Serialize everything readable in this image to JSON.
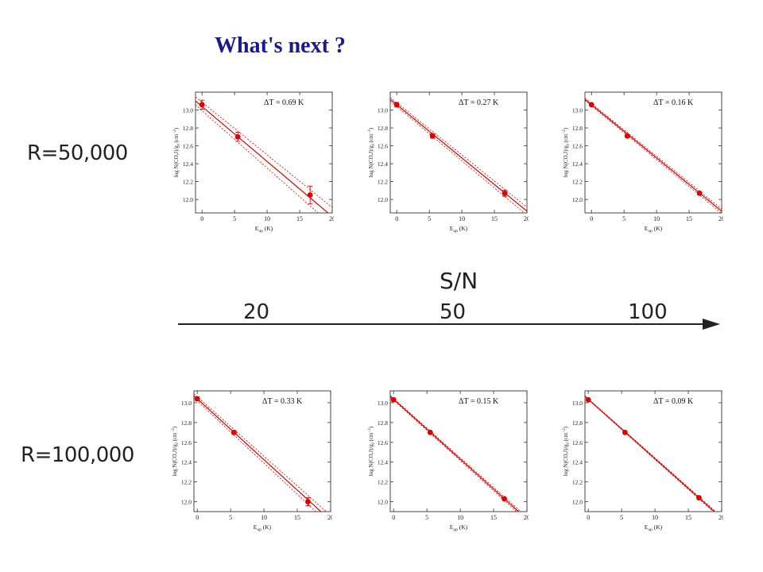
{
  "slide": {
    "title": "What's next ?",
    "row_labels": [
      "R=50,000",
      "R=100,000"
    ],
    "sn_axis": {
      "label": "S/N",
      "values": [
        "20",
        "50",
        "100"
      ]
    }
  },
  "chart_data": [
    {
      "type": "scatter",
      "row": "R=50,000",
      "column_sn": "20",
      "annotation": "ΔT = 0.69 K",
      "xlabel": "E_up (K)",
      "ylabel": "log N(CO,J)/g_J (cm^-2)",
      "xlim": [
        -1,
        20
      ],
      "ylim": [
        11.85,
        13.2
      ],
      "xticks": [
        0,
        5,
        10,
        15,
        20
      ],
      "yticks": [
        12.0,
        12.2,
        12.4,
        12.6,
        12.8,
        13.0
      ],
      "x": [
        0,
        5.5,
        16.6
      ],
      "y": [
        13.06,
        12.7,
        12.05
      ],
      "yerr": [
        0.05,
        0.05,
        0.1
      ],
      "fit": {
        "intercept": 13.04,
        "slope": -0.0615
      },
      "fit_band": [
        0.045,
        0.1
      ]
    },
    {
      "type": "scatter",
      "row": "R=50,000",
      "column_sn": "50",
      "annotation": "ΔT = 0.27 K",
      "xlabel": "E_up (K)",
      "ylabel": "log N(CO,J)/g_J (cm^-2)",
      "xlim": [
        -1,
        20
      ],
      "ylim": [
        11.85,
        13.2
      ],
      "xticks": [
        0,
        5,
        10,
        15,
        20
      ],
      "yticks": [
        12.0,
        12.2,
        12.4,
        12.6,
        12.8,
        13.0
      ],
      "x": [
        0,
        5.5,
        16.6
      ],
      "y": [
        13.06,
        12.71,
        12.07
      ],
      "yerr": [
        0.025,
        0.025,
        0.035
      ],
      "fit": {
        "intercept": 13.06,
        "slope": -0.0595
      },
      "fit_band": [
        0.02,
        0.045
      ]
    },
    {
      "type": "scatter",
      "row": "R=50,000",
      "column_sn": "100",
      "annotation": "ΔT = 0.16 K",
      "xlabel": "E_up (K)",
      "ylabel": "log N(CO,J)/g_J (cm^-2)",
      "xlim": [
        -1,
        20
      ],
      "ylim": [
        11.85,
        13.2
      ],
      "xticks": [
        0,
        5,
        10,
        15,
        20
      ],
      "yticks": [
        12.0,
        12.2,
        12.4,
        12.6,
        12.8,
        13.0
      ],
      "x": [
        0,
        5.5,
        16.6
      ],
      "y": [
        13.06,
        12.71,
        12.07
      ],
      "yerr": [
        0.012,
        0.012,
        0.018
      ],
      "fit": {
        "intercept": 13.06,
        "slope": -0.0595
      },
      "fit_band": [
        0.012,
        0.025
      ]
    },
    {
      "type": "scatter",
      "row": "R=100,000",
      "column_sn": "20",
      "annotation": "ΔT = 0.33 K",
      "xlabel": "E_up (K)",
      "ylabel": "log N(CO,J)/g_J (cm^-2)",
      "xlim": [
        -0.5,
        20
      ],
      "ylim": [
        11.9,
        13.12
      ],
      "xticks": [
        0,
        5,
        10,
        15,
        20
      ],
      "yticks": [
        12.0,
        12.2,
        12.4,
        12.6,
        12.8,
        13.0
      ],
      "x": [
        0,
        5.5,
        16.6
      ],
      "y": [
        13.04,
        12.7,
        12.0
      ],
      "yerr": [
        0.02,
        0.02,
        0.04
      ],
      "fit": {
        "intercept": 13.04,
        "slope": -0.0615
      },
      "fit_band": [
        0.02,
        0.05
      ]
    },
    {
      "type": "scatter",
      "row": "R=100,000",
      "column_sn": "50",
      "annotation": "ΔT = 0.15 K",
      "xlabel": "E_up (K)",
      "ylabel": "log N(CO,J)/g_J (cm^-2)",
      "xlim": [
        -0.5,
        20
      ],
      "ylim": [
        11.9,
        13.12
      ],
      "xticks": [
        0,
        5,
        10,
        15,
        20
      ],
      "yticks": [
        12.0,
        12.2,
        12.4,
        12.6,
        12.8,
        13.0
      ],
      "x": [
        0,
        5.5,
        16.6
      ],
      "y": [
        13.03,
        12.7,
        12.03
      ],
      "yerr": [
        0.01,
        0.01,
        0.015
      ],
      "fit": {
        "intercept": 13.035,
        "slope": -0.0605
      },
      "fit_band": [
        0.008,
        0.02
      ]
    },
    {
      "type": "scatter",
      "row": "R=100,000",
      "column_sn": "100",
      "annotation": "ΔT = 0.09 K",
      "xlabel": "E_up (K)",
      "ylabel": "log N(CO,J)/g_J (cm^-2)",
      "xlim": [
        -0.5,
        20
      ],
      "ylim": [
        11.9,
        13.12
      ],
      "xticks": [
        0,
        5,
        10,
        15,
        20
      ],
      "yticks": [
        12.0,
        12.2,
        12.4,
        12.6,
        12.8,
        13.0
      ],
      "x": [
        0,
        5.5,
        16.6
      ],
      "y": [
        13.03,
        12.7,
        12.04
      ],
      "yerr": [
        0.005,
        0.005,
        0.008
      ],
      "fit": {
        "intercept": 13.035,
        "slope": -0.06
      },
      "fit_band": [
        0.004,
        0.012
      ]
    }
  ],
  "colors": {
    "title": "#1a1a8a",
    "data": "#e00000",
    "frame": "#333333",
    "arrow": "#222222"
  }
}
